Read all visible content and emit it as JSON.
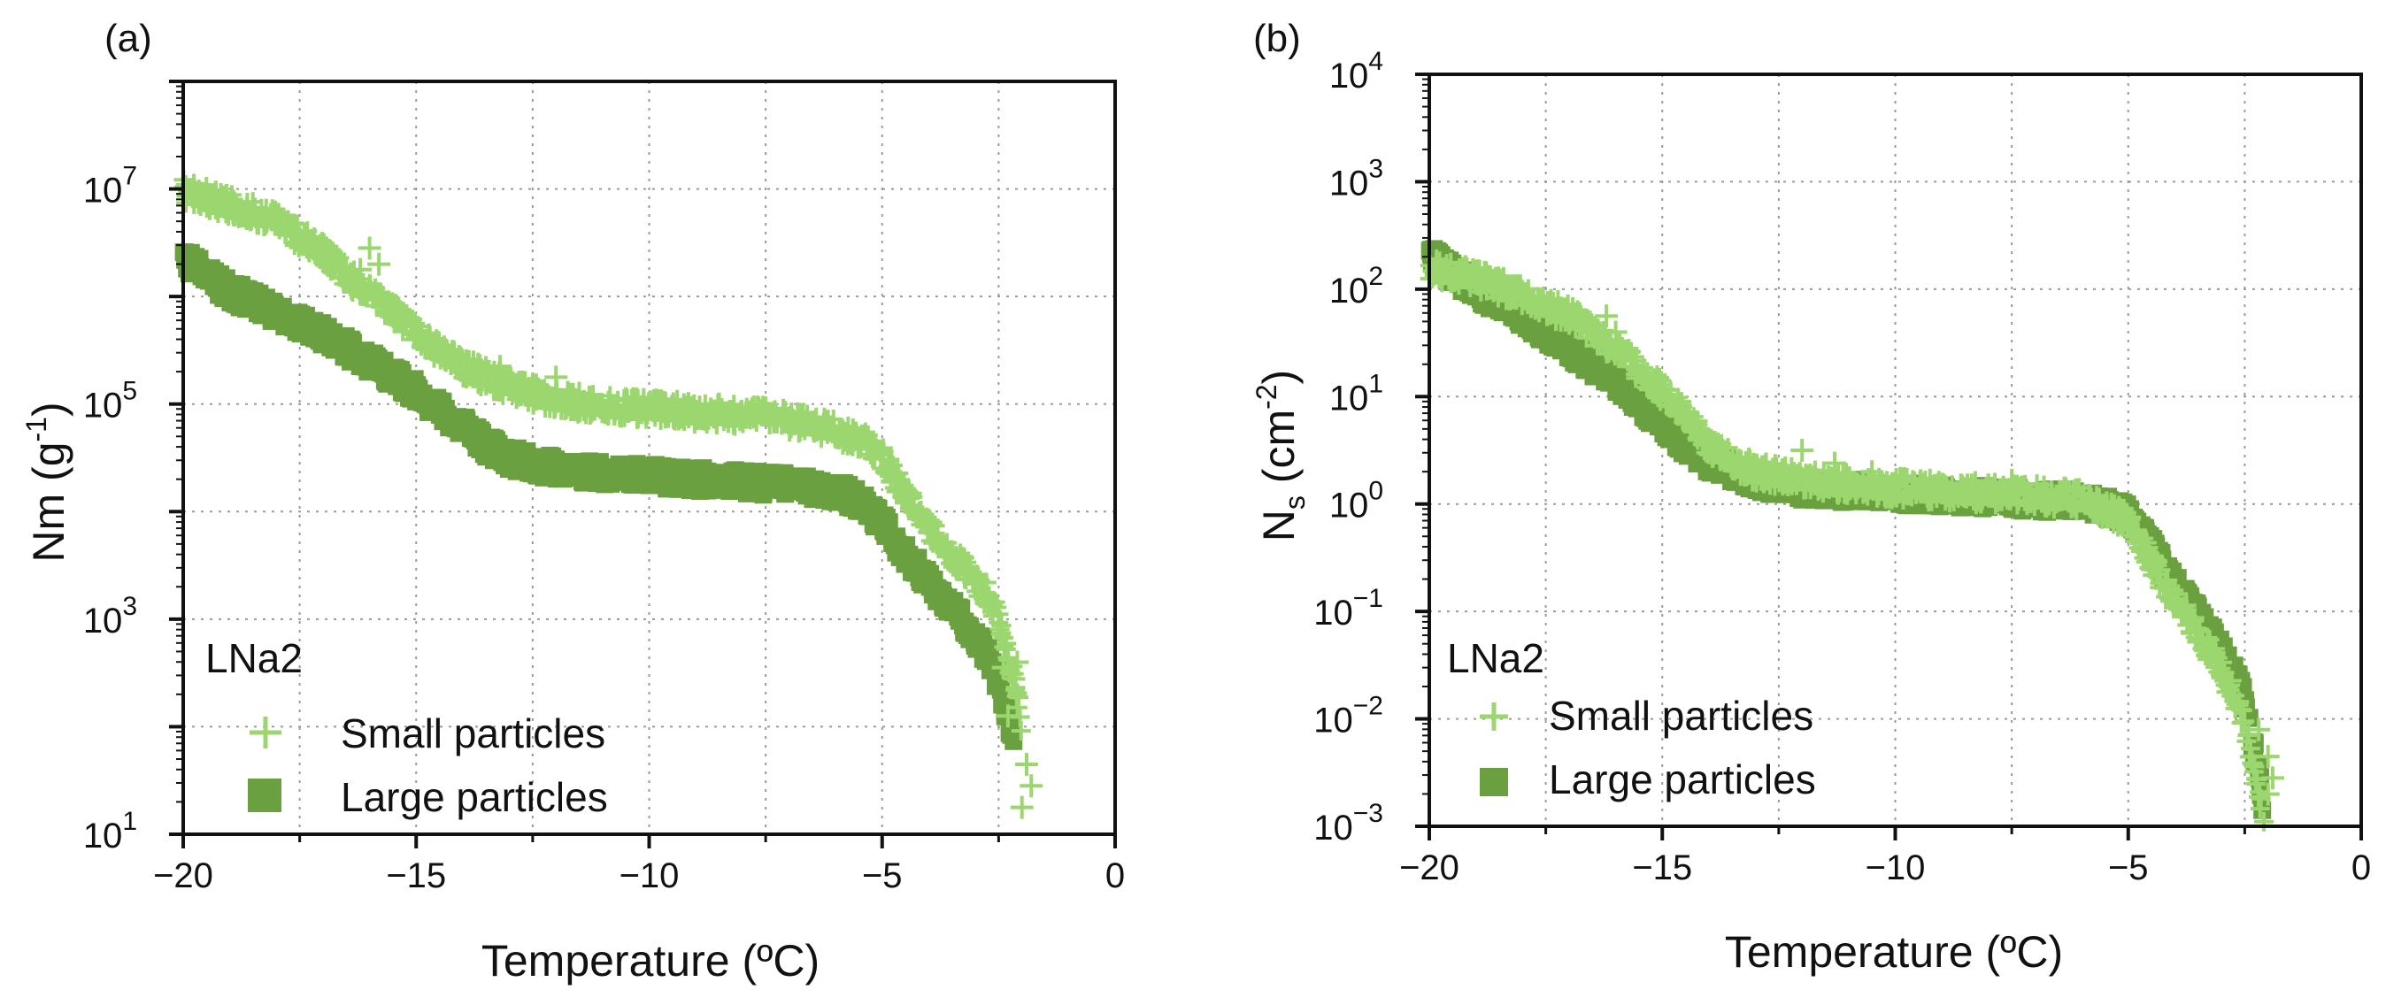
{
  "colors": {
    "small": "#9bd66f",
    "large": "#6aa03f",
    "axis": "#111111",
    "grid": "#9a9a9a"
  },
  "chart_data": [
    {
      "id": "a",
      "panel_label": "(a)",
      "type": "scatter",
      "xlabel": "Temperature (ºC)",
      "ylabel_main": "Nm (g",
      "ylabel_sup": "-1",
      "ylabel_end": ")",
      "ylabel_sub": "",
      "xlim": [
        -20,
        0
      ],
      "ylim_log10": [
        1,
        8
      ],
      "yscale": "log",
      "grid": true,
      "xticks": [
        {
          "v": -20,
          "label": "−20"
        },
        {
          "v": -15,
          "label": "−15"
        },
        {
          "v": -10,
          "label": "−10"
        },
        {
          "v": -5,
          "label": "−5"
        },
        {
          "v": 0,
          "label": "0"
        }
      ],
      "yticks": [
        {
          "v": 1,
          "base": "10",
          "exp": "1"
        },
        {
          "v": 3,
          "base": "10",
          "exp": "3"
        },
        {
          "v": 5,
          "base": "10",
          "exp": "5"
        },
        {
          "v": 7,
          "base": "10",
          "exp": "7"
        }
      ],
      "legend": {
        "title": "LNa2",
        "position": "bottom-left",
        "entries": [
          {
            "label": "Small particles",
            "marker": "plus",
            "series": "small"
          },
          {
            "label": "Large particles",
            "marker": "square",
            "series": "large"
          }
        ]
      },
      "series": [
        {
          "name": "Small particles",
          "key": "small",
          "marker": "plus",
          "x": [
            -20.0,
            -19.0,
            -18.0,
            -17.5,
            -17.0,
            -16.5,
            -16.0,
            -15.5,
            -15.0,
            -14.5,
            -14.0,
            -13.5,
            -13.0,
            -12.5,
            -12.0,
            -11.0,
            -10.0,
            -9.0,
            -8.0,
            -7.0,
            -6.0,
            -5.3,
            -5.0,
            -4.5,
            -4.0,
            -3.5,
            -3.0,
            -2.7,
            -2.5,
            -2.3,
            -2.1,
            -2.0
          ],
          "log10_y": [
            6.98,
            6.85,
            6.7,
            6.55,
            6.4,
            6.2,
            6.02,
            5.85,
            5.65,
            5.5,
            5.35,
            5.25,
            5.15,
            5.1,
            5.05,
            4.98,
            4.95,
            4.92,
            4.9,
            4.85,
            4.75,
            4.62,
            4.5,
            4.15,
            3.85,
            3.6,
            3.35,
            3.2,
            3.0,
            2.65,
            2.3,
            1.9
          ],
          "extras": [
            {
              "x": -16.2,
              "log10_y": 6.25
            },
            {
              "x": -16.0,
              "log10_y": 6.45
            },
            {
              "x": -15.8,
              "log10_y": 6.3
            },
            {
              "x": -13.2,
              "log10_y": 5.35
            },
            {
              "x": -12.0,
              "log10_y": 5.25
            },
            {
              "x": -11.5,
              "log10_y": 5.1
            },
            {
              "x": -10.5,
              "log10_y": 5.05
            },
            {
              "x": -8.5,
              "log10_y": 5.0
            },
            {
              "x": -7.5,
              "log10_y": 4.95
            },
            {
              "x": -2.4,
              "log10_y": 2.55
            },
            {
              "x": -2.3,
              "log10_y": 2.1
            },
            {
              "x": -2.1,
              "log10_y": 2.6
            },
            {
              "x": -1.9,
              "log10_y": 1.65
            },
            {
              "x": -2.0,
              "log10_y": 1.25
            },
            {
              "x": -1.8,
              "log10_y": 1.45
            }
          ]
        },
        {
          "name": "Large particles",
          "key": "large",
          "marker": "square",
          "x": [
            -20.0,
            -19.0,
            -18.0,
            -17.0,
            -16.0,
            -15.0,
            -14.5,
            -14.0,
            -13.5,
            -13.0,
            -12.0,
            -11.0,
            -10.0,
            -9.0,
            -8.0,
            -7.0,
            -6.0,
            -5.5,
            -5.0,
            -4.5,
            -4.0,
            -3.5,
            -3.0,
            -2.7,
            -2.5,
            -2.3,
            -2.2
          ],
          "log10_y": [
            6.35,
            6.05,
            5.85,
            5.65,
            5.4,
            5.12,
            4.95,
            4.8,
            4.62,
            4.5,
            4.4,
            4.35,
            4.33,
            4.3,
            4.28,
            4.25,
            4.2,
            4.1,
            3.9,
            3.6,
            3.35,
            3.1,
            2.85,
            2.65,
            2.4,
            2.1,
            1.8
          ]
        }
      ]
    },
    {
      "id": "b",
      "panel_label": "(b)",
      "type": "scatter",
      "xlabel": "Temperature (ºC)",
      "ylabel_main": "N",
      "ylabel_sub": "s",
      "ylabel_mid": " (cm",
      "ylabel_sup": "-2",
      "ylabel_end": ")",
      "xlim": [
        -20,
        0
      ],
      "ylim_log10": [
        -3,
        4
      ],
      "yscale": "log",
      "grid": true,
      "xticks": [
        {
          "v": -20,
          "label": "−20"
        },
        {
          "v": -15,
          "label": "−15"
        },
        {
          "v": -10,
          "label": "−10"
        },
        {
          "v": -5,
          "label": "−5"
        },
        {
          "v": 0,
          "label": "0"
        }
      ],
      "yticks": [
        {
          "v": -3,
          "base": "10",
          "exp": "−3"
        },
        {
          "v": -2,
          "base": "10",
          "exp": "−2"
        },
        {
          "v": -1,
          "base": "10",
          "exp": "−1"
        },
        {
          "v": 0,
          "base": "10",
          "exp": "0"
        },
        {
          "v": 1,
          "base": "10",
          "exp": "1"
        },
        {
          "v": 2,
          "base": "10",
          "exp": "2"
        },
        {
          "v": 3,
          "base": "10",
          "exp": "3"
        },
        {
          "v": 4,
          "base": "10",
          "exp": "4"
        }
      ],
      "legend": {
        "title": "LNa2",
        "position": "bottom-left",
        "entries": [
          {
            "label": "Small particles",
            "marker": "plus",
            "series": "small"
          },
          {
            "label": "Large particles",
            "marker": "square",
            "series": "large"
          }
        ]
      },
      "series": [
        {
          "name": "Large particles",
          "key": "large",
          "marker": "square",
          "x": [
            -20.0,
            -19.5,
            -19.0,
            -18.0,
            -17.0,
            -16.0,
            -15.5,
            -15.0,
            -14.5,
            -14.0,
            -13.5,
            -13.0,
            -12.0,
            -11.0,
            -10.0,
            -9.0,
            -8.0,
            -7.0,
            -6.0,
            -5.5,
            -5.0,
            -4.5,
            -4.0,
            -3.5,
            -3.0,
            -2.5,
            -2.3,
            -2.1
          ],
          "log10_y": [
            2.3,
            2.15,
            2.0,
            1.75,
            1.45,
            1.15,
            0.95,
            0.75,
            0.55,
            0.4,
            0.3,
            0.22,
            0.15,
            0.12,
            0.1,
            0.08,
            0.06,
            0.04,
            0.02,
            -0.02,
            -0.1,
            -0.4,
            -0.75,
            -1.05,
            -1.35,
            -1.8,
            -2.3,
            -2.8
          ]
        },
        {
          "name": "Small particles",
          "key": "small",
          "marker": "plus",
          "x": [
            -20.0,
            -19.5,
            -19.0,
            -18.0,
            -17.0,
            -16.5,
            -16.0,
            -15.5,
            -15.0,
            -14.5,
            -14.0,
            -13.5,
            -13.0,
            -12.0,
            -11.0,
            -10.0,
            -9.0,
            -8.0,
            -7.0,
            -6.0,
            -5.0,
            -4.5,
            -4.0,
            -3.5,
            -3.0,
            -2.5,
            -2.3,
            -2.1
          ],
          "log10_y": [
            2.2,
            2.15,
            2.1,
            1.95,
            1.75,
            1.6,
            1.45,
            1.25,
            1.05,
            0.8,
            0.55,
            0.4,
            0.3,
            0.22,
            0.18,
            0.15,
            0.12,
            0.1,
            0.08,
            0.04,
            -0.15,
            -0.55,
            -0.9,
            -1.2,
            -1.55,
            -2.0,
            -2.5,
            -2.95
          ],
          "extras": [
            {
              "x": -16.2,
              "log10_y": 1.75
            },
            {
              "x": -16.0,
              "log10_y": 1.6
            },
            {
              "x": -15.9,
              "log10_y": 1.45
            },
            {
              "x": -12.0,
              "log10_y": 0.5
            },
            {
              "x": -11.3,
              "log10_y": 0.38
            },
            {
              "x": -10.5,
              "log10_y": 0.3
            },
            {
              "x": -7.5,
              "log10_y": 0.22
            },
            {
              "x": -2.2,
              "log10_y": -2.1
            },
            {
              "x": -2.0,
              "log10_y": -2.35
            },
            {
              "x": -2.0,
              "log10_y": -2.7
            },
            {
              "x": -1.9,
              "log10_y": -2.55
            }
          ]
        }
      ]
    }
  ]
}
